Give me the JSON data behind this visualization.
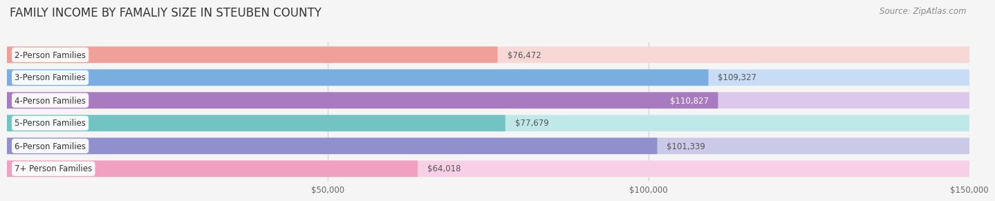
{
  "title": "FAMILY INCOME BY FAMALIY SIZE IN STEUBEN COUNTY",
  "source": "Source: ZipAtlas.com",
  "categories": [
    "2-Person Families",
    "3-Person Families",
    "4-Person Families",
    "5-Person Families",
    "6-Person Families",
    "7+ Person Families"
  ],
  "values": [
    76472,
    109327,
    110827,
    77679,
    101339,
    64018
  ],
  "bar_colors": [
    "#F0A099",
    "#7BAEE0",
    "#A87BC0",
    "#72C4C4",
    "#9090CC",
    "#F0A0C0"
  ],
  "bar_bg_colors": [
    "#F8D8D5",
    "#C8DCF5",
    "#DCC8ED",
    "#C0E8E8",
    "#CACAE8",
    "#F8D0E5"
  ],
  "value_labels": [
    "$76,472",
    "$109,327",
    "$110,827",
    "$77,679",
    "$101,339",
    "$64,018"
  ],
  "value_inside": [
    false,
    false,
    true,
    false,
    false,
    false
  ],
  "xlim_min": 0,
  "xlim_max": 150000,
  "xtick_values": [
    50000,
    100000,
    150000
  ],
  "xtick_labels": [
    "$50,000",
    "$100,000",
    "$150,000"
  ],
  "title_fontsize": 12,
  "label_fontsize": 8.5,
  "value_fontsize": 8.5,
  "source_fontsize": 8.5,
  "bg_color": "#f5f5f5",
  "bar_gap": 0.15,
  "grid_color": "#d0d0d0"
}
